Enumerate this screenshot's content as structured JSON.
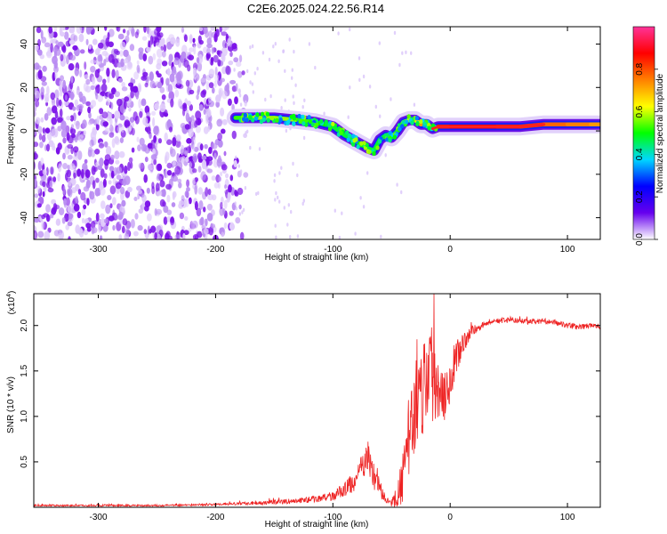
{
  "title": "C2E6.2025.024.22.56.R14",
  "colors": {
    "spectrum_low": "#6600ee",
    "spectrum_mid": "#00d7ff",
    "spectrum_high": "#ff2a2a",
    "snr_line": "#ee2222"
  },
  "chart_data": [
    {
      "type": "heatmap",
      "xlabel": "Height of straight line (km)",
      "ylabel": "Frequency (Hz)",
      "xlim": [
        -355,
        128
      ],
      "ylim": [
        -50,
        48
      ],
      "xticks": [
        -300,
        -200,
        -100,
        0,
        100
      ],
      "yticks": [
        -40,
        -20,
        0,
        20,
        40
      ],
      "colorbar": {
        "label": "Normalized spectral amplitude",
        "range": [
          0,
          1
        ],
        "ticks": [
          "0.0",
          "0.2",
          "0.4",
          "0.6",
          "0.8"
        ],
        "colormap": [
          "#ffffff",
          "#6600ee",
          "#0000ff",
          "#00d7ff",
          "#00ff00",
          "#ffff00",
          "#ff8000",
          "#ff0000",
          "#ff3399"
        ]
      },
      "noise_region_x": [
        -355,
        -185
      ],
      "signal_trace": {
        "x": [
          -183,
          -170,
          -150,
          -130,
          -115,
          -100,
          -90,
          -80,
          -70,
          -65,
          -60,
          -55,
          -50,
          -45,
          -40,
          -35,
          -30,
          -25,
          -20,
          -15,
          -10,
          0,
          20,
          40,
          60,
          80,
          100,
          120,
          128
        ],
        "frequency": [
          6,
          6,
          6,
          5,
          4,
          2,
          -2,
          -5,
          -8,
          -9,
          -4,
          -2,
          -3,
          0,
          4,
          5,
          5,
          3,
          3,
          1,
          2,
          2,
          2,
          2,
          2,
          3,
          3,
          3,
          3
        ],
        "amplitude": [
          0.5,
          0.55,
          0.6,
          0.55,
          0.5,
          0.5,
          0.45,
          0.5,
          0.5,
          0.45,
          0.5,
          0.45,
          0.45,
          0.5,
          0.55,
          0.6,
          0.6,
          0.7,
          0.75,
          0.8,
          0.85,
          0.85,
          0.9,
          0.85,
          0.85,
          0.8,
          0.75,
          0.75,
          0.7
        ]
      }
    },
    {
      "type": "line",
      "xlabel": "Height of straight line (km)",
      "ylabel": "SNR (10 * v/v)",
      "y_multiplier": "(x10",
      "y_multiplier_exp": "4",
      "xlim": [
        -355,
        128
      ],
      "ylim": [
        0,
        2.35
      ],
      "xticks": [
        -300,
        -200,
        -100,
        0,
        100
      ],
      "yticks": [
        0.5,
        1.0,
        1.5,
        2.0
      ],
      "series": [
        {
          "x": [
            -355,
            -300,
            -250,
            -200,
            -160,
            -130,
            -110,
            -100,
            -90,
            -80,
            -75,
            -70,
            -65,
            -60,
            -55,
            -50,
            -45,
            -40,
            -35,
            -30,
            -25,
            -20,
            -15,
            -10,
            -5,
            0,
            5,
            10,
            20,
            30,
            40,
            50,
            60,
            70,
            80,
            90,
            100,
            110,
            120,
            128
          ],
          "y": [
            0.02,
            0.02,
            0.02,
            0.03,
            0.05,
            0.07,
            0.1,
            0.12,
            0.2,
            0.3,
            0.45,
            0.55,
            0.35,
            0.2,
            0.08,
            0.05,
            0.1,
            0.35,
            0.8,
            1.1,
            1.3,
            1.45,
            1.5,
            1.35,
            1.3,
            1.4,
            1.6,
            1.8,
            1.95,
            2.02,
            2.05,
            2.06,
            2.05,
            2.04,
            2.05,
            2.03,
            2.0,
            1.98,
            2.0,
            1.98
          ],
          "spread": [
            0.01,
            0.01,
            0.01,
            0.01,
            0.02,
            0.03,
            0.04,
            0.05,
            0.08,
            0.12,
            0.15,
            0.18,
            0.15,
            0.1,
            0.04,
            0.04,
            0.15,
            0.3,
            0.45,
            0.5,
            0.55,
            0.6,
            0.55,
            0.45,
            0.35,
            0.25,
            0.2,
            0.12,
            0.06,
            0.03,
            0.03,
            0.03,
            0.03,
            0.03,
            0.03,
            0.03,
            0.03,
            0.03,
            0.03,
            0.03
          ]
        }
      ]
    }
  ]
}
